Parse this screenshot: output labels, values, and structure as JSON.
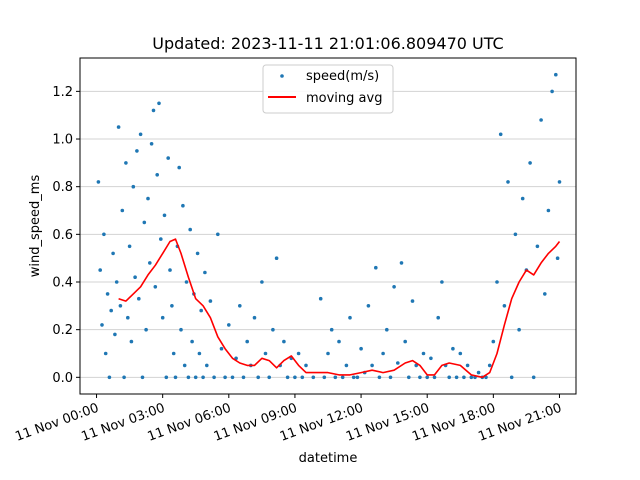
{
  "chart_data": {
    "type": "scatter",
    "title": "Updated: 2023-11-11 21:01:06.809470 UTC",
    "xlabel": "datetime",
    "ylabel": "wind_speed_ms",
    "xlim": [
      "2023-11-10T23:15",
      "2023-11-11T21:45"
    ],
    "ylim": [
      -0.07,
      1.34
    ],
    "grid": "horizontal",
    "legend": {
      "placement": "top-center"
    },
    "x_ticks": [
      {
        "t": "2023-11-11T00:00",
        "label": "11 Nov 00:00"
      },
      {
        "t": "2023-11-11T03:00",
        "label": "11 Nov 03:00"
      },
      {
        "t": "2023-11-11T06:00",
        "label": "11 Nov 06:00"
      },
      {
        "t": "2023-11-11T09:00",
        "label": "11 Nov 09:00"
      },
      {
        "t": "2023-11-11T12:00",
        "label": "11 Nov 12:00"
      },
      {
        "t": "2023-11-11T15:00",
        "label": "11 Nov 15:00"
      },
      {
        "t": "2023-11-11T18:00",
        "label": "11 Nov 18:00"
      },
      {
        "t": "2023-11-11T21:00",
        "label": "11 Nov 21:00"
      }
    ],
    "y_ticks": [
      0.0,
      0.2,
      0.4,
      0.6,
      0.8,
      1.0,
      1.2
    ],
    "y_tick_labels": [
      "0.0",
      "0.2",
      "0.4",
      "0.6",
      "0.8",
      "1.0",
      "1.2"
    ],
    "series": [
      {
        "name": "speed(m/s)",
        "kind": "scatter",
        "color": "#1f77b4",
        "points": [
          [
            "2023-11-11T00:05",
            0.82
          ],
          [
            "2023-11-11T00:10",
            0.45
          ],
          [
            "2023-11-11T00:15",
            0.22
          ],
          [
            "2023-11-11T00:20",
            0.6
          ],
          [
            "2023-11-11T00:25",
            0.1
          ],
          [
            "2023-11-11T00:30",
            0.35
          ],
          [
            "2023-11-11T00:35",
            0.0
          ],
          [
            "2023-11-11T00:40",
            0.28
          ],
          [
            "2023-11-11T00:45",
            0.52
          ],
          [
            "2023-11-11T00:50",
            0.18
          ],
          [
            "2023-11-11T00:55",
            0.4
          ],
          [
            "2023-11-11T01:00",
            1.05
          ],
          [
            "2023-11-11T01:05",
            0.3
          ],
          [
            "2023-11-11T01:10",
            0.7
          ],
          [
            "2023-11-11T01:15",
            0.0
          ],
          [
            "2023-11-11T01:20",
            0.9
          ],
          [
            "2023-11-11T01:25",
            0.25
          ],
          [
            "2023-11-11T01:30",
            0.55
          ],
          [
            "2023-11-11T01:35",
            0.15
          ],
          [
            "2023-11-11T01:40",
            0.8
          ],
          [
            "2023-11-11T01:45",
            0.42
          ],
          [
            "2023-11-11T01:50",
            0.95
          ],
          [
            "2023-11-11T01:55",
            0.33
          ],
          [
            "2023-11-11T02:00",
            1.02
          ],
          [
            "2023-11-11T02:05",
            0.0
          ],
          [
            "2023-11-11T02:10",
            0.65
          ],
          [
            "2023-11-11T02:15",
            0.2
          ],
          [
            "2023-11-11T02:20",
            0.75
          ],
          [
            "2023-11-11T02:25",
            0.48
          ],
          [
            "2023-11-11T02:30",
            0.98
          ],
          [
            "2023-11-11T02:35",
            1.12
          ],
          [
            "2023-11-11T02:40",
            0.38
          ],
          [
            "2023-11-11T02:45",
            0.85
          ],
          [
            "2023-11-11T02:50",
            1.15
          ],
          [
            "2023-11-11T02:55",
            0.58
          ],
          [
            "2023-11-11T03:00",
            0.25
          ],
          [
            "2023-11-11T03:05",
            0.68
          ],
          [
            "2023-11-11T03:10",
            0.0
          ],
          [
            "2023-11-11T03:15",
            0.92
          ],
          [
            "2023-11-11T03:20",
            0.45
          ],
          [
            "2023-11-11T03:25",
            0.3
          ],
          [
            "2023-11-11T03:30",
            0.1
          ],
          [
            "2023-11-11T03:35",
            0.0
          ],
          [
            "2023-11-11T03:40",
            0.55
          ],
          [
            "2023-11-11T03:45",
            0.88
          ],
          [
            "2023-11-11T03:50",
            0.2
          ],
          [
            "2023-11-11T03:55",
            0.72
          ],
          [
            "2023-11-11T04:00",
            0.05
          ],
          [
            "2023-11-11T04:05",
            0.4
          ],
          [
            "2023-11-11T04:10",
            0.0
          ],
          [
            "2023-11-11T04:15",
            0.62
          ],
          [
            "2023-11-11T04:20",
            0.15
          ],
          [
            "2023-11-11T04:25",
            0.35
          ],
          [
            "2023-11-11T04:30",
            0.0
          ],
          [
            "2023-11-11T04:35",
            0.52
          ],
          [
            "2023-11-11T04:40",
            0.1
          ],
          [
            "2023-11-11T04:45",
            0.28
          ],
          [
            "2023-11-11T04:50",
            0.0
          ],
          [
            "2023-11-11T04:55",
            0.44
          ],
          [
            "2023-11-11T05:00",
            0.05
          ],
          [
            "2023-11-11T05:10",
            0.32
          ],
          [
            "2023-11-11T05:20",
            0.0
          ],
          [
            "2023-11-11T05:30",
            0.6
          ],
          [
            "2023-11-11T05:40",
            0.12
          ],
          [
            "2023-11-11T05:50",
            0.0
          ],
          [
            "2023-11-11T06:00",
            0.22
          ],
          [
            "2023-11-11T06:10",
            0.0
          ],
          [
            "2023-11-11T06:20",
            0.08
          ],
          [
            "2023-11-11T06:30",
            0.3
          ],
          [
            "2023-11-11T06:40",
            0.0
          ],
          [
            "2023-11-11T06:50",
            0.15
          ],
          [
            "2023-11-11T07:00",
            0.05
          ],
          [
            "2023-11-11T07:10",
            0.25
          ],
          [
            "2023-11-11T07:20",
            0.0
          ],
          [
            "2023-11-11T07:30",
            0.4
          ],
          [
            "2023-11-11T07:40",
            0.1
          ],
          [
            "2023-11-11T07:50",
            0.0
          ],
          [
            "2023-11-11T08:00",
            0.2
          ],
          [
            "2023-11-11T08:10",
            0.5
          ],
          [
            "2023-11-11T08:20",
            0.05
          ],
          [
            "2023-11-11T08:30",
            0.15
          ],
          [
            "2023-11-11T08:40",
            0.0
          ],
          [
            "2023-11-11T08:50",
            0.08
          ],
          [
            "2023-11-11T09:00",
            0.0
          ],
          [
            "2023-11-11T09:10",
            0.1
          ],
          [
            "2023-11-11T09:20",
            0.0
          ],
          [
            "2023-11-11T09:30",
            0.05
          ],
          [
            "2023-11-11T09:50",
            0.0
          ],
          [
            "2023-11-11T10:10",
            0.33
          ],
          [
            "2023-11-11T10:20",
            0.0
          ],
          [
            "2023-11-11T10:30",
            0.1
          ],
          [
            "2023-11-11T10:40",
            0.2
          ],
          [
            "2023-11-11T10:50",
            0.0
          ],
          [
            "2023-11-11T11:00",
            0.15
          ],
          [
            "2023-11-11T11:10",
            0.0
          ],
          [
            "2023-11-11T11:20",
            0.05
          ],
          [
            "2023-11-11T11:30",
            0.25
          ],
          [
            "2023-11-11T11:40",
            0.0
          ],
          [
            "2023-11-11T11:50",
            0.0
          ],
          [
            "2023-11-11T12:00",
            0.12
          ],
          [
            "2023-11-11T12:10",
            0.02
          ],
          [
            "2023-11-11T12:20",
            0.3
          ],
          [
            "2023-11-11T12:30",
            0.05
          ],
          [
            "2023-11-11T12:40",
            0.46
          ],
          [
            "2023-11-11T12:50",
            0.0
          ],
          [
            "2023-11-11T13:00",
            0.1
          ],
          [
            "2023-11-11T13:10",
            0.2
          ],
          [
            "2023-11-11T13:20",
            0.0
          ],
          [
            "2023-11-11T13:30",
            0.38
          ],
          [
            "2023-11-11T13:40",
            0.06
          ],
          [
            "2023-11-11T13:50",
            0.48
          ],
          [
            "2023-11-11T14:00",
            0.15
          ],
          [
            "2023-11-11T14:10",
            0.0
          ],
          [
            "2023-11-11T14:20",
            0.32
          ],
          [
            "2023-11-11T14:30",
            0.05
          ],
          [
            "2023-11-11T14:40",
            0.0
          ],
          [
            "2023-11-11T14:50",
            0.1
          ],
          [
            "2023-11-11T15:00",
            0.0
          ],
          [
            "2023-11-11T15:10",
            0.08
          ],
          [
            "2023-11-11T15:20",
            0.0
          ],
          [
            "2023-11-11T15:30",
            0.25
          ],
          [
            "2023-11-11T15:40",
            0.4
          ],
          [
            "2023-11-11T15:50",
            0.05
          ],
          [
            "2023-11-11T16:00",
            0.0
          ],
          [
            "2023-11-11T16:10",
            0.12
          ],
          [
            "2023-11-11T16:20",
            0.0
          ],
          [
            "2023-11-11T16:30",
            0.1
          ],
          [
            "2023-11-11T16:40",
            0.0
          ],
          [
            "2023-11-11T16:50",
            0.05
          ],
          [
            "2023-11-11T17:00",
            0.0
          ],
          [
            "2023-11-11T17:10",
            0.0
          ],
          [
            "2023-11-11T17:20",
            0.02
          ],
          [
            "2023-11-11T17:30",
            0.0
          ],
          [
            "2023-11-11T17:40",
            0.0
          ],
          [
            "2023-11-11T17:50",
            0.05
          ],
          [
            "2023-11-11T18:00",
            0.15
          ],
          [
            "2023-11-11T18:10",
            0.4
          ],
          [
            "2023-11-11T18:20",
            1.02
          ],
          [
            "2023-11-11T18:30",
            0.3
          ],
          [
            "2023-11-11T18:40",
            0.82
          ],
          [
            "2023-11-11T18:50",
            0.0
          ],
          [
            "2023-11-11T19:00",
            0.6
          ],
          [
            "2023-11-11T19:10",
            0.2
          ],
          [
            "2023-11-11T19:20",
            0.75
          ],
          [
            "2023-11-11T19:30",
            0.45
          ],
          [
            "2023-11-11T19:40",
            0.9
          ],
          [
            "2023-11-11T19:50",
            0.0
          ],
          [
            "2023-11-11T20:00",
            0.55
          ],
          [
            "2023-11-11T20:10",
            1.08
          ],
          [
            "2023-11-11T20:20",
            0.35
          ],
          [
            "2023-11-11T20:30",
            0.7
          ],
          [
            "2023-11-11T20:40",
            1.2
          ],
          [
            "2023-11-11T20:50",
            1.27
          ],
          [
            "2023-11-11T20:55",
            0.5
          ],
          [
            "2023-11-11T21:00",
            0.82
          ]
        ]
      },
      {
        "name": "moving avg",
        "kind": "line",
        "color": "#ff0000",
        "points": [
          [
            "2023-11-11T01:00",
            0.33
          ],
          [
            "2023-11-11T01:20",
            0.32
          ],
          [
            "2023-11-11T01:40",
            0.35
          ],
          [
            "2023-11-11T02:00",
            0.38
          ],
          [
            "2023-11-11T02:20",
            0.43
          ],
          [
            "2023-11-11T02:40",
            0.47
          ],
          [
            "2023-11-11T03:00",
            0.52
          ],
          [
            "2023-11-11T03:20",
            0.57
          ],
          [
            "2023-11-11T03:35",
            0.58
          ],
          [
            "2023-11-11T03:50",
            0.52
          ],
          [
            "2023-11-11T04:10",
            0.42
          ],
          [
            "2023-11-11T04:30",
            0.33
          ],
          [
            "2023-11-11T04:50",
            0.3
          ],
          [
            "2023-11-11T05:10",
            0.25
          ],
          [
            "2023-11-11T05:30",
            0.17
          ],
          [
            "2023-11-11T05:50",
            0.12
          ],
          [
            "2023-11-11T06:10",
            0.08
          ],
          [
            "2023-11-11T06:30",
            0.06
          ],
          [
            "2023-11-11T06:50",
            0.05
          ],
          [
            "2023-11-11T07:10",
            0.05
          ],
          [
            "2023-11-11T07:30",
            0.08
          ],
          [
            "2023-11-11T07:50",
            0.07
          ],
          [
            "2023-11-11T08:10",
            0.04
          ],
          [
            "2023-11-11T08:30",
            0.07
          ],
          [
            "2023-11-11T08:50",
            0.09
          ],
          [
            "2023-11-11T09:10",
            0.05
          ],
          [
            "2023-11-11T09:30",
            0.02
          ],
          [
            "2023-11-11T10:00",
            0.02
          ],
          [
            "2023-11-11T10:30",
            0.02
          ],
          [
            "2023-11-11T11:00",
            0.01
          ],
          [
            "2023-11-11T11:30",
            0.01
          ],
          [
            "2023-11-11T12:00",
            0.02
          ],
          [
            "2023-11-11T12:30",
            0.03
          ],
          [
            "2023-11-11T13:00",
            0.02
          ],
          [
            "2023-11-11T13:30",
            0.03
          ],
          [
            "2023-11-11T14:00",
            0.06
          ],
          [
            "2023-11-11T14:20",
            0.07
          ],
          [
            "2023-11-11T14:40",
            0.05
          ],
          [
            "2023-11-11T15:00",
            0.01
          ],
          [
            "2023-11-11T15:20",
            0.01
          ],
          [
            "2023-11-11T15:40",
            0.05
          ],
          [
            "2023-11-11T16:00",
            0.06
          ],
          [
            "2023-11-11T16:30",
            0.05
          ],
          [
            "2023-11-11T17:00",
            0.01
          ],
          [
            "2023-11-11T17:30",
            0.0
          ],
          [
            "2023-11-11T17:50",
            0.02
          ],
          [
            "2023-11-11T18:10",
            0.1
          ],
          [
            "2023-11-11T18:30",
            0.22
          ],
          [
            "2023-11-11T18:50",
            0.33
          ],
          [
            "2023-11-11T19:10",
            0.4
          ],
          [
            "2023-11-11T19:30",
            0.45
          ],
          [
            "2023-11-11T19:50",
            0.43
          ],
          [
            "2023-11-11T20:10",
            0.48
          ],
          [
            "2023-11-11T20:30",
            0.52
          ],
          [
            "2023-11-11T20:50",
            0.55
          ],
          [
            "2023-11-11T21:00",
            0.57
          ]
        ]
      }
    ]
  }
}
